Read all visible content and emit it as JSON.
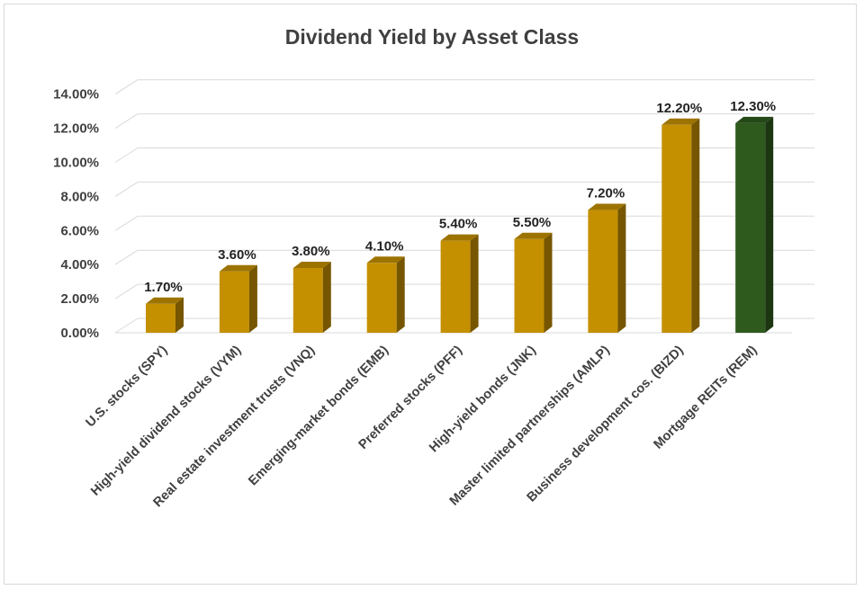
{
  "chart_data": {
    "type": "bar",
    "title": "Dividend Yield by Asset Class",
    "xlabel": "",
    "ylabel": "",
    "ylim": [
      0,
      14
    ],
    "ytick_step": 2,
    "ytick_format": "percent_2dp",
    "grid": true,
    "legend": "none",
    "categories": [
      "U.S. stocks (SPY)",
      "High-yield dividend stocks (VYM)",
      "Real estate investment trusts (VNQ)",
      "Emerging-market bonds (EMB)",
      "Preferred stocks (PFF)",
      "High-yield bonds (JNK)",
      "Master limited partnerships (AMLP)",
      "Business development cos. (BIZD)",
      "Mortgage REITs (REM)"
    ],
    "values": [
      1.7,
      3.6,
      3.8,
      4.1,
      5.4,
      5.5,
      7.2,
      12.2,
      12.3
    ],
    "data_labels": [
      "1.70%",
      "3.60%",
      "3.80%",
      "4.10%",
      "5.40%",
      "5.50%",
      "7.20%",
      "12.20%",
      "12.30%"
    ],
    "y_tick_labels": [
      "0.00%",
      "2.00%",
      "4.00%",
      "6.00%",
      "8.00%",
      "10.00%",
      "12.00%",
      "14.00%"
    ],
    "bar_colors": [
      "#c49000",
      "#c49000",
      "#c49000",
      "#c49000",
      "#c49000",
      "#c49000",
      "#c49000",
      "#c49000",
      "#2e5a1e"
    ]
  }
}
